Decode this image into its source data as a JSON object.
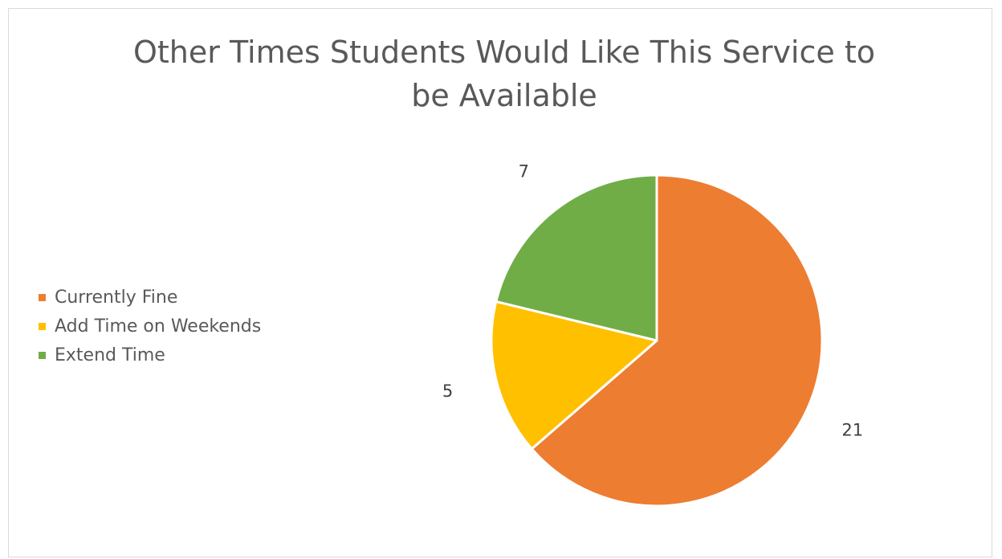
{
  "chart_data": {
    "type": "pie",
    "title": "Other Times Students Would Like This Service to be Available",
    "title_lines": [
      "Other Times Students Would Like This Service to",
      "be Available"
    ],
    "legend_position": "left",
    "slices": [
      {
        "label": "Currently Fine",
        "value": 21,
        "color": "#ED7D31"
      },
      {
        "label": "Add Time on Weekends",
        "value": 5,
        "color": "#FFC000"
      },
      {
        "label": "Extend Time",
        "value": 7,
        "color": "#70AD47"
      }
    ],
    "data_labels": [
      "21",
      "5",
      "7"
    ]
  }
}
